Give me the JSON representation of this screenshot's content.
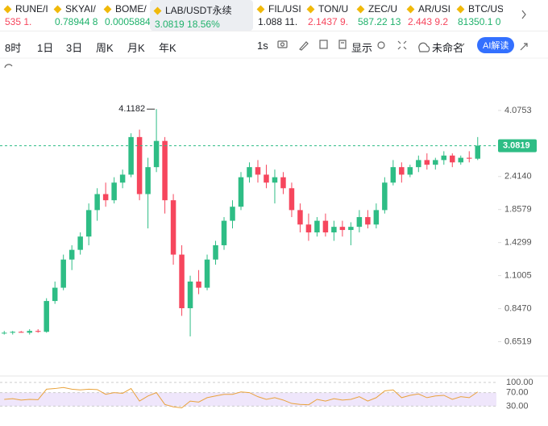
{
  "tabs": [
    {
      "symbol": "RUNE/I",
      "price": "535",
      "change": "1.",
      "color": "#f6465d"
    },
    {
      "symbol": "SKYAI/",
      "price": "0.78944",
      "change": "8",
      "color": "#20b26c"
    },
    {
      "symbol": "BOME/",
      "price": "0.0005884",
      "change": "",
      "color": "#20b26c"
    },
    {
      "symbol": "LAB/USDT永续",
      "price": "3.0819",
      "change": "18.56%",
      "color": "#20b26c"
    },
    {
      "symbol": "FIL/USI",
      "price": "1.088",
      "change": "11.",
      "color": "#1e2026"
    },
    {
      "symbol": "TON/U",
      "price": "2.1437",
      "change": "9.",
      "color": "#f6465d"
    },
    {
      "symbol": "ZEC/U",
      "price": "587.22",
      "change": "13",
      "color": "#20b26c"
    },
    {
      "symbol": "AR/USI",
      "price": "2.443",
      "change": "9.2",
      "color": "#f6465d"
    },
    {
      "symbol": "BTC/US",
      "price": "81350.1",
      "change": "0",
      "color": "#20b26c"
    }
  ],
  "toolbar": {
    "intervals": [
      "8时",
      "1日",
      "3日",
      "周K",
      "月K",
      "年K"
    ],
    "speed": "1s",
    "display": "显示",
    "layout": "未命名",
    "ai": "AI解读"
  },
  "chart_data": {
    "type": "candlestick",
    "log_scale": true,
    "up_color": "#2ebd85",
    "down_color": "#f6465d",
    "ylim": [
      0.5,
      6.17
    ],
    "yticks": [
      0.6519,
      {
        "value": 0.847,
        "label": "0.8470"
      },
      1.1005,
      1.4299,
      1.8579,
      {
        "value": 2.414,
        "label": "2.4140"
      },
      4.0753
    ],
    "open": [
      0.7,
      0.7,
      0.705,
      0.7,
      0.71,
      0.705,
      0.9,
      1.0,
      1.25,
      1.35,
      1.5,
      1.85,
      2.1,
      2.0,
      2.3,
      2.45,
      3.3,
      2.1,
      2.6,
      3.2,
      2.0,
      1.3,
      0.85,
      1.05,
      1.0,
      1.25,
      1.4,
      1.7,
      1.9,
      2.4,
      2.6,
      2.45,
      2.3,
      2.4,
      2.2,
      1.85,
      1.65,
      1.55,
      1.7,
      1.55,
      1.62,
      1.58,
      1.62,
      1.75,
      1.65,
      1.85,
      2.3,
      2.6,
      2.45,
      2.6,
      2.75,
      2.65,
      2.75,
      2.85,
      2.7,
      2.8,
      2.78
    ],
    "high": [
      0.71,
      0.71,
      0.71,
      0.72,
      0.72,
      0.92,
      1.05,
      1.3,
      1.4,
      1.55,
      1.95,
      2.2,
      2.3,
      2.4,
      2.55,
      3.4,
      3.5,
      2.8,
      4.1182,
      3.3,
      2.1,
      1.4,
      1.1,
      1.15,
      1.3,
      1.45,
      1.75,
      2.0,
      2.5,
      2.7,
      2.75,
      2.65,
      2.55,
      2.5,
      2.3,
      1.95,
      1.8,
      1.75,
      1.8,
      1.7,
      1.7,
      1.68,
      1.85,
      1.85,
      1.95,
      2.4,
      2.75,
      2.7,
      2.65,
      2.85,
      2.9,
      2.8,
      2.95,
      2.9,
      2.85,
      2.95,
      3.3
    ],
    "low": [
      0.69,
      0.69,
      0.7,
      0.69,
      0.7,
      0.7,
      0.88,
      0.98,
      1.15,
      1.3,
      1.4,
      1.7,
      1.9,
      1.95,
      2.2,
      2.4,
      2.0,
      1.6,
      2.5,
      1.8,
      1.2,
      0.8,
      0.68,
      0.95,
      0.98,
      1.2,
      1.35,
      1.6,
      1.85,
      2.3,
      2.3,
      2.2,
      1.95,
      2.1,
      1.75,
      1.55,
      1.45,
      1.5,
      1.5,
      1.45,
      1.5,
      1.4,
      1.55,
      1.6,
      1.6,
      1.8,
      2.25,
      2.3,
      2.4,
      2.5,
      2.55,
      2.55,
      2.65,
      2.6,
      2.65,
      2.7,
      2.75
    ],
    "close": [
      0.7,
      0.705,
      0.7,
      0.71,
      0.705,
      0.9,
      1.0,
      1.25,
      1.35,
      1.5,
      1.85,
      2.1,
      2.0,
      2.3,
      2.45,
      3.3,
      2.1,
      2.6,
      3.2,
      2.0,
      1.3,
      0.85,
      1.05,
      1.0,
      1.25,
      1.4,
      1.7,
      1.9,
      2.4,
      2.6,
      2.45,
      2.3,
      2.4,
      2.2,
      1.85,
      1.65,
      1.55,
      1.7,
      1.55,
      1.62,
      1.58,
      1.62,
      1.75,
      1.65,
      1.85,
      2.3,
      2.6,
      2.45,
      2.6,
      2.75,
      2.65,
      2.75,
      2.85,
      2.7,
      2.8,
      2.78,
      3.0819
    ],
    "rsi": {
      "ylim": [
        0,
        100
      ],
      "yticks": [
        {
          "value": 30,
          "label": "30.00"
        },
        {
          "value": 70,
          "label": "70.00"
        },
        {
          "value": 100,
          "label": "100.00"
        }
      ],
      "color": "#e9a23b",
      "values": [
        50,
        52,
        48,
        50,
        49,
        80,
        82,
        85,
        80,
        78,
        80,
        79,
        65,
        70,
        68,
        82,
        45,
        60,
        70,
        35,
        28,
        25,
        45,
        42,
        55,
        60,
        65,
        65,
        72,
        70,
        58,
        50,
        55,
        48,
        38,
        35,
        34,
        50,
        45,
        52,
        48,
        50,
        58,
        45,
        55,
        75,
        78,
        55,
        62,
        66,
        55,
        60,
        62,
        50,
        58,
        55,
        72
      ]
    }
  }
}
